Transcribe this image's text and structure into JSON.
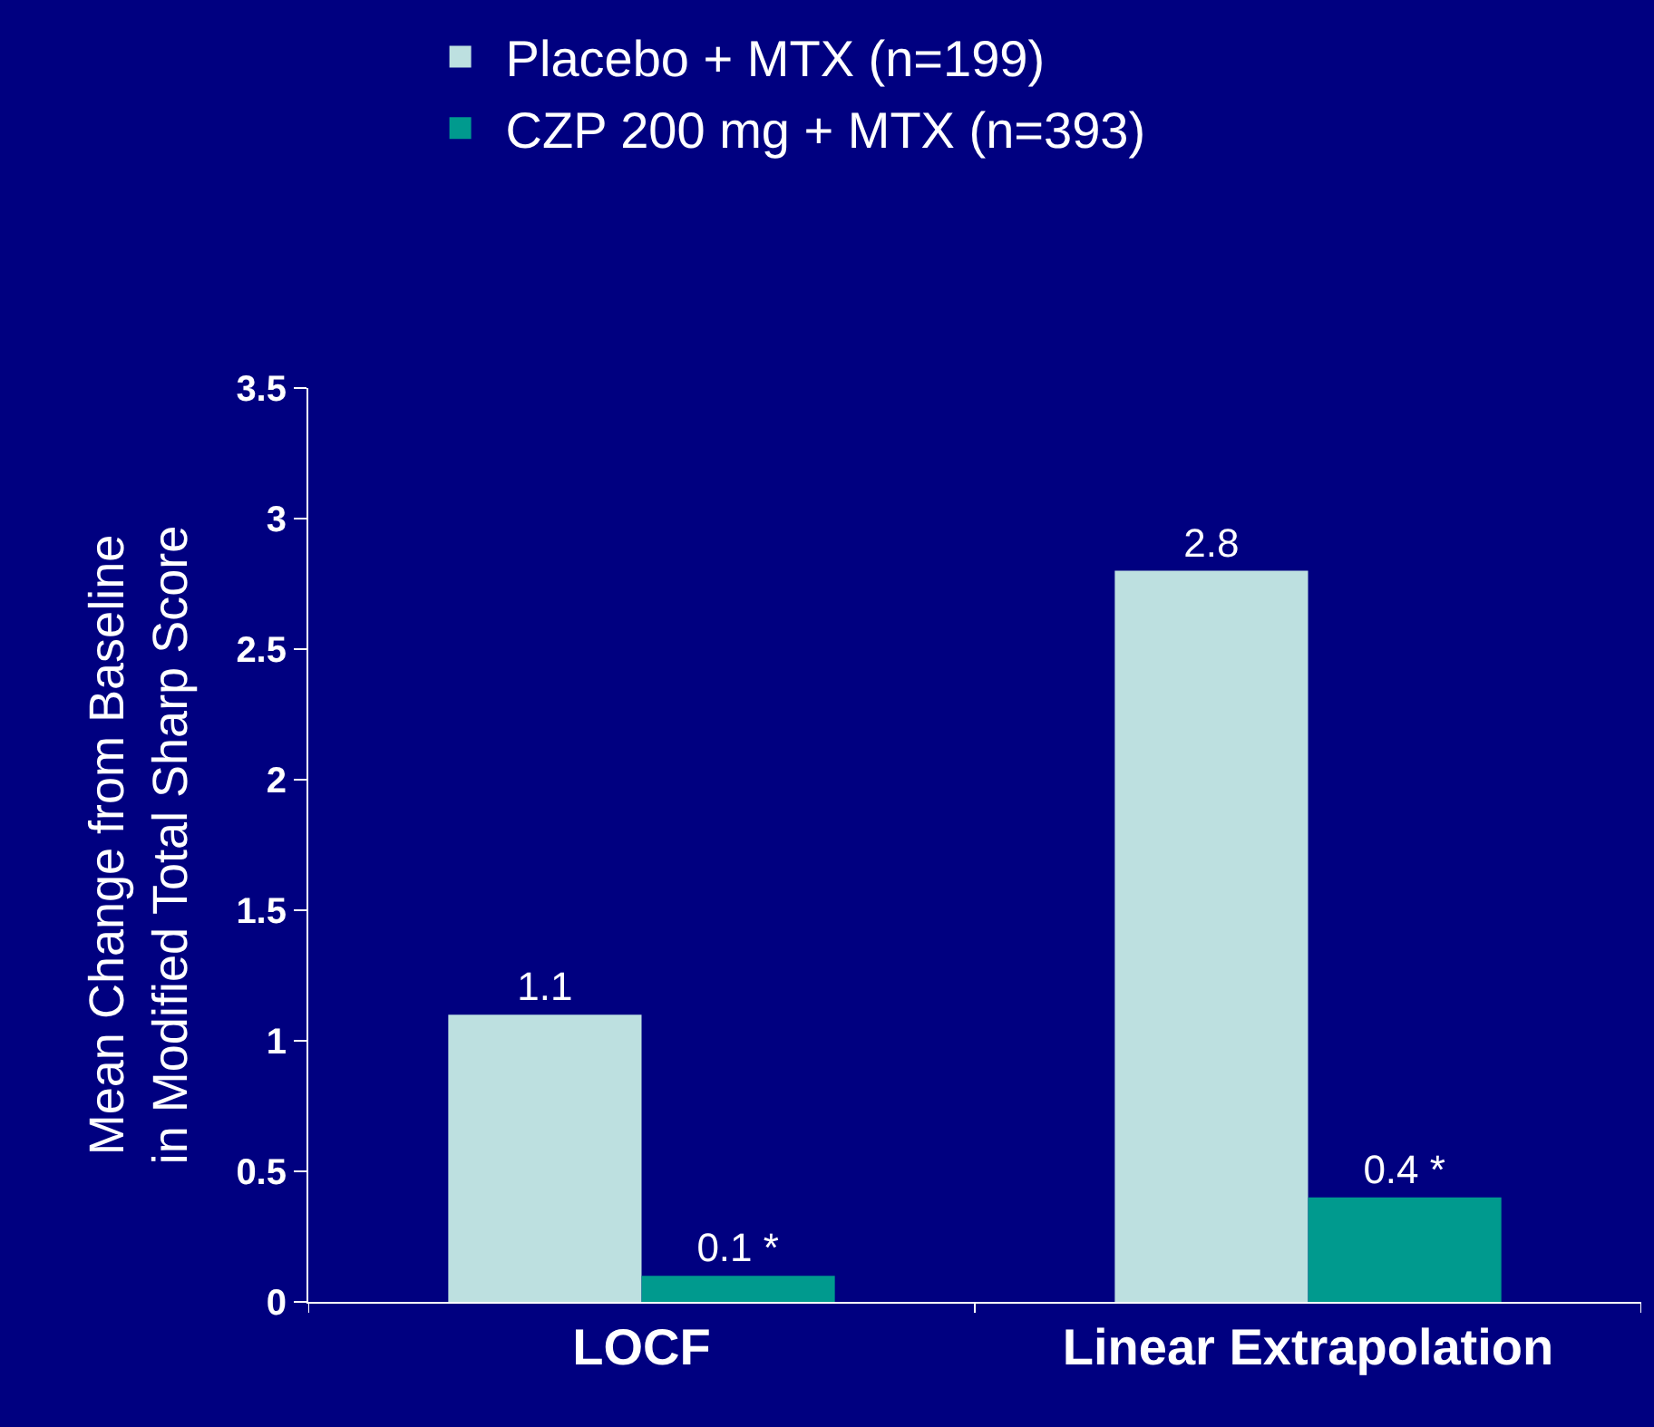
{
  "chart_data": {
    "type": "bar",
    "ylabel": "Mean Change from Baseline\nin Modified Total Sharp Score",
    "categories": [
      "LOCF",
      "Linear Extrapolation"
    ],
    "series": [
      {
        "name": "Placebo + MTX (n=199)",
        "color": "#bde0e0",
        "values": [
          1.1,
          2.8
        ],
        "value_labels": [
          "1.1",
          "2.8"
        ]
      },
      {
        "name": "CZP 200 mg + MTX (n=393)",
        "color": "#009a8e",
        "values": [
          0.1,
          0.4
        ],
        "value_labels": [
          "0.1 *",
          "0.4 *"
        ]
      }
    ],
    "ylim": [
      0,
      3.5
    ],
    "yticks": [
      0,
      0.5,
      1,
      1.5,
      2,
      2.5,
      3,
      3.5
    ],
    "grid": false,
    "legend": "top"
  }
}
